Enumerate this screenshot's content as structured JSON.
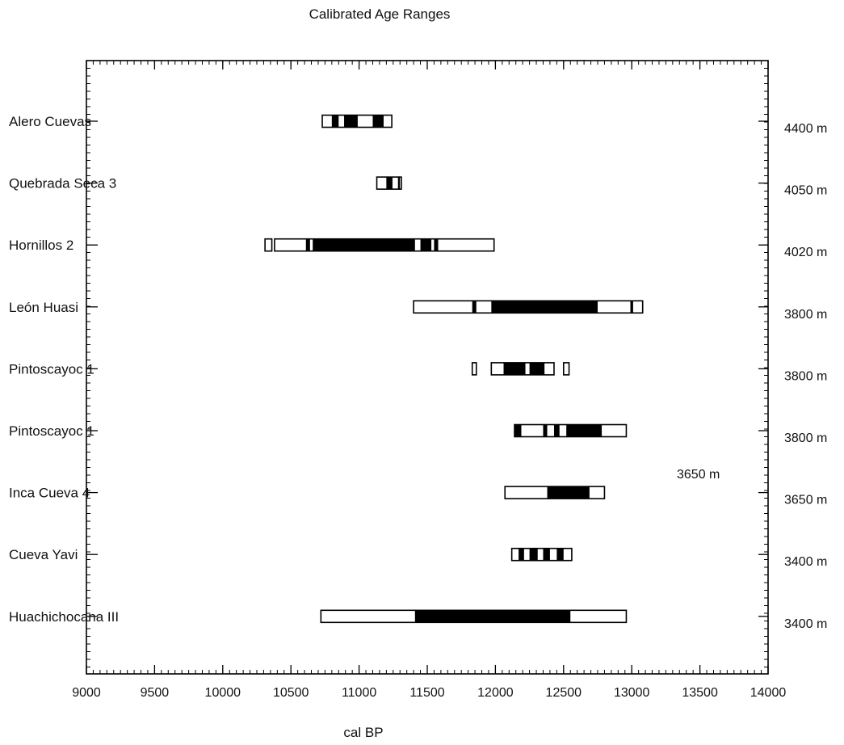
{
  "chart_data": {
    "type": "range",
    "title": "Calibrated Age Ranges",
    "xlabel": "cal BP",
    "xlim": [
      9000,
      14000
    ],
    "xticks": [
      "9000",
      "9500",
      "10000",
      "10500",
      "11000",
      "11500",
      "12000",
      "12500",
      "13000",
      "13500",
      "14000"
    ],
    "grid": false,
    "colors": {
      "bar_outline": "#000000",
      "bar_fill_high_probability": "#000000",
      "bar_fill_low_probability": "#ffffff"
    },
    "annotation": "3650 m",
    "sites": [
      {
        "name": "Alero Cuevas",
        "altitude": "4400 m",
        "outline": [
          [
            10730,
            11240
          ]
        ],
        "filled": [
          [
            10800,
            10850
          ],
          [
            10890,
            10990
          ],
          [
            11100,
            11180
          ]
        ]
      },
      {
        "name": "Quebrada Seca 3",
        "altitude": "4050 m",
        "outline": [
          [
            11130,
            11290
          ],
          [
            11295,
            11310
          ]
        ],
        "filled": [
          [
            11200,
            11245
          ]
        ]
      },
      {
        "name": "Hornillos 2",
        "altitude": "4020 m",
        "outline": [
          [
            10310,
            10360
          ],
          [
            10380,
            11990
          ]
        ],
        "filled": [
          [
            10610,
            10640
          ],
          [
            10660,
            11410
          ],
          [
            11450,
            11530
          ],
          [
            11550,
            11580
          ]
        ]
      },
      {
        "name": "León Huasi",
        "altitude": "3800 m",
        "outline": [
          [
            11400,
            13080
          ]
        ],
        "filled": [
          [
            11830,
            11860
          ],
          [
            11970,
            12750
          ],
          [
            12990,
            13010
          ]
        ]
      },
      {
        "name": "Pintoscayoc 1",
        "altitude": "3800 m",
        "outline": [
          [
            11830,
            11860
          ],
          [
            11970,
            12430
          ],
          [
            12500,
            12540
          ]
        ],
        "filled": [
          [
            12060,
            12220
          ],
          [
            12250,
            12360
          ]
        ]
      },
      {
        "name": "Pintoscayoc 1",
        "altitude": "3800 m",
        "outline": [
          [
            12140,
            12960
          ]
        ],
        "filled": [
          [
            12140,
            12190
          ],
          [
            12350,
            12380
          ],
          [
            12430,
            12470
          ],
          [
            12520,
            12780
          ]
        ]
      },
      {
        "name": "Inca Cueva 4",
        "altitude": "3650 m",
        "outline": [
          [
            12070,
            12800
          ]
        ],
        "filled": [
          [
            12380,
            12690
          ]
        ]
      },
      {
        "name": "Cueva Yavi",
        "altitude": "3400 m",
        "outline": [
          [
            12120,
            12560
          ]
        ],
        "filled": [
          [
            12170,
            12210
          ],
          [
            12250,
            12310
          ],
          [
            12350,
            12400
          ],
          [
            12450,
            12500
          ]
        ]
      },
      {
        "name": "Huachichocana III",
        "altitude": "3400 m",
        "outline": [
          [
            10720,
            12960
          ]
        ],
        "filled": [
          [
            11410,
            12550
          ]
        ]
      }
    ]
  }
}
